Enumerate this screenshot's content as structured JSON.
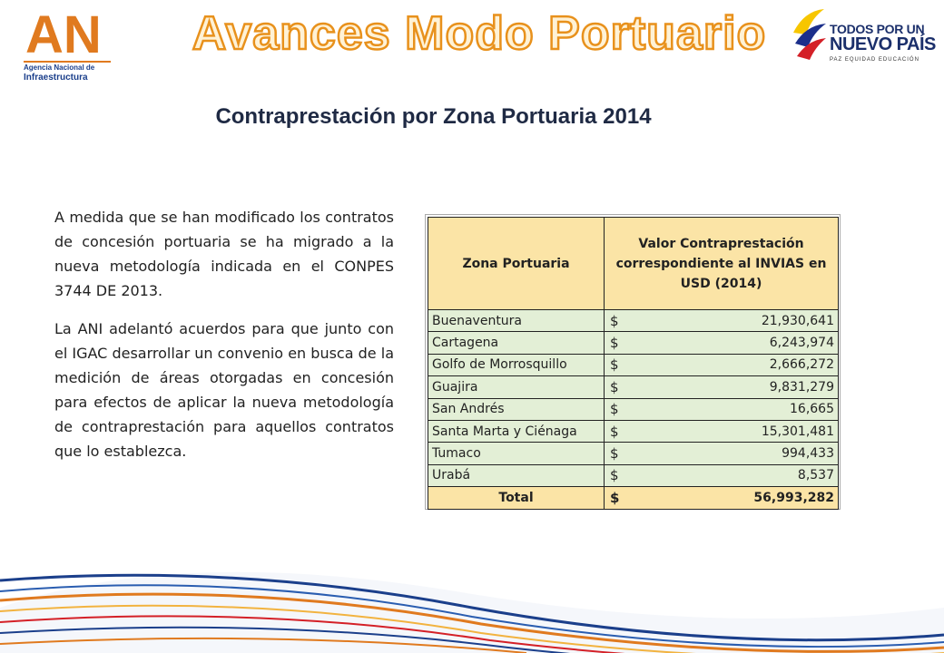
{
  "header": {
    "ani_logo": {
      "mark": "ANi",
      "line1": "Agencia Nacional de",
      "line2": "Infraestructura"
    },
    "banner_title": "Avances Modo Portuario",
    "gov_logo": {
      "line1": "TODOS POR UN",
      "line2": "NUEVO PAÍS",
      "line3": "PAZ EQUIDAD EDUCACIÓN"
    }
  },
  "slide_title": "Contraprestación por Zona Portuaria 2014",
  "body": {
    "paragraph1": "A medida que se han modificado los contratos de concesión portuaria se ha migrado a la nueva metodología indicada en el CONPES 3744 DE 2013.",
    "paragraph2": "La ANI adelantó acuerdos para que junto con el IGAC desarrollar un convenio en busca de la medición de áreas otorgadas en concesión para efectos de aplicar la nueva metodología de contraprestación para aquellos contratos que lo establezca."
  },
  "table": {
    "headers": [
      "Zona Portuaria",
      "Valor Contraprestación correspondiente al INVIAS en USD (2014)"
    ],
    "currency": "$",
    "rows": [
      {
        "zone": "Buenaventura",
        "value": "21,930,641"
      },
      {
        "zone": "Cartagena",
        "value": "6,243,974"
      },
      {
        "zone": "Golfo de Morrosquillo",
        "value": "2,666,272"
      },
      {
        "zone": "Guajira",
        "value": "9,831,279"
      },
      {
        "zone": "San Andrés",
        "value": "16,665"
      },
      {
        "zone": "Santa Marta y Ciénaga",
        "value": "15,301,481"
      },
      {
        "zone": "Tumaco",
        "value": "994,433"
      },
      {
        "zone": "Urabá",
        "value": "8,537"
      }
    ],
    "total": {
      "zone": "Total",
      "value": "56,993,282"
    }
  },
  "colors": {
    "header_fill": "#fbe4a6",
    "row_fill": "#e3efd6",
    "banner_orange": "#f5a623",
    "ani_blue": "#1b3f8b",
    "ani_orange": "#e07a1f"
  }
}
